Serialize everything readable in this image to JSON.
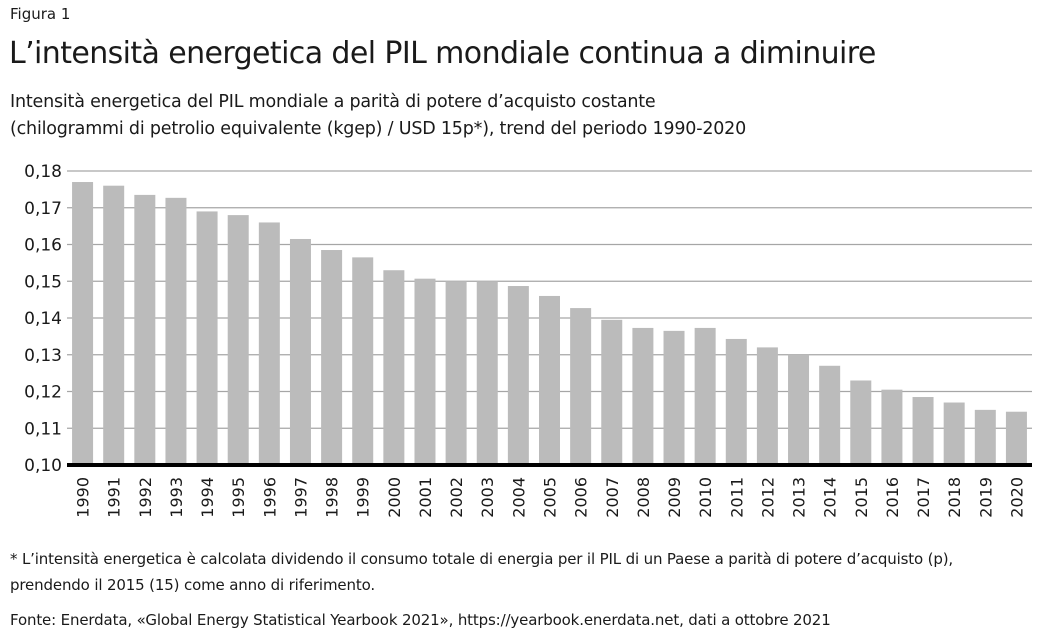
{
  "figure_label": "Figura 1",
  "title": "L’intensità energetica del PIL mondiale continua a diminuire",
  "subtitle_line1": "Intensità energetica del PIL mondiale a parità di potere d’acquisto costante",
  "subtitle_line2": "(chilogrammi di petrolio equivalente (kgep) / USD 15p*), trend del periodo 1990-2020",
  "footnote_line1": "* L’intensità energetica è calcolata dividendo il consumo totale di energia per il PIL di un Paese a parità di potere d’acquisto (p),",
  "footnote_line2": "prendendo il 2015 (15) come anno di riferimento.",
  "source": "Fonte: Enerdata, «Global Energy Statistical Yearbook 2021», https://yearbook.enerdata.net, dati a ottobre 2021",
  "colors": {
    "bar": "#bbbbbb",
    "grid": "#a6a6a6",
    "baseline": "#000000"
  },
  "chart_data": {
    "type": "bar",
    "title": "L’intensità energetica del PIL mondiale continua a diminuire",
    "xlabel": "",
    "ylabel": "kgep / USD 15p",
    "ylim": [
      0.1,
      0.18
    ],
    "grid": true,
    "legend": "none",
    "y_ticks": [
      "0,10",
      "0,11",
      "0,12",
      "0,13",
      "0,14",
      "0,15",
      "0,16",
      "0,17",
      "0,18"
    ],
    "y_tick_values": [
      0.1,
      0.11,
      0.12,
      0.13,
      0.14,
      0.15,
      0.16,
      0.17,
      0.18
    ],
    "categories": [
      "1990",
      "1991",
      "1992",
      "1993",
      "1994",
      "1995",
      "1996",
      "1997",
      "1998",
      "1999",
      "2000",
      "2001",
      "2002",
      "2003",
      "2004",
      "2005",
      "2006",
      "2007",
      "2008",
      "2009",
      "2010",
      "2011",
      "2012",
      "2013",
      "2014",
      "2015",
      "2016",
      "2017",
      "2018",
      "2019",
      "2020"
    ],
    "values": [
      0.177,
      0.176,
      0.1735,
      0.1727,
      0.169,
      0.168,
      0.166,
      0.1615,
      0.1585,
      0.1565,
      0.153,
      0.1507,
      0.15,
      0.15,
      0.1487,
      0.146,
      0.1427,
      0.1395,
      0.1373,
      0.1365,
      0.1373,
      0.1343,
      0.132,
      0.13,
      0.127,
      0.123,
      0.1205,
      0.1185,
      0.117,
      0.115,
      0.1145
    ]
  }
}
